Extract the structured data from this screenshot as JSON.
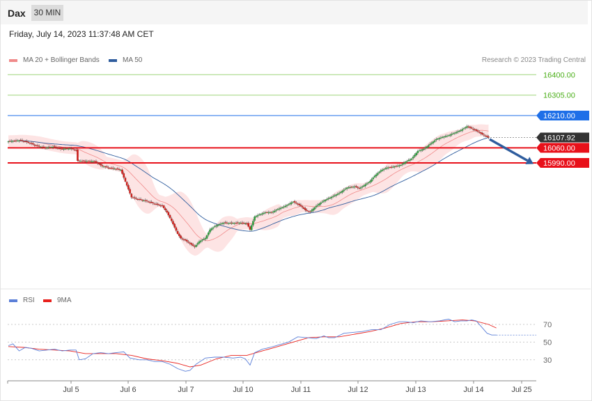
{
  "header": {
    "symbol": "Dax",
    "timeframe": "30 MIN"
  },
  "datetime": "Friday, July 14, 2023 11:37:48 AM CET",
  "legend": {
    "ma20": {
      "label": "MA 20 + Bollinger Bands",
      "color": "#f08a8a"
    },
    "ma50": {
      "label": "MA 50",
      "color": "#2f5d9e"
    },
    "copyright": "Research © 2023 Trading Central"
  },
  "rsi_legend": {
    "rsi": {
      "label": "RSI",
      "color": "#5b7fd8"
    },
    "ma9": {
      "label": "9MA",
      "color": "#e8201c"
    }
  },
  "chart_data": [
    {
      "type": "candlestick",
      "title": "",
      "x_labels": [
        "Jul 5",
        "Jul 6",
        "Jul 7",
        "Jul 10",
        "Jul 11",
        "Jul 12",
        "Jul 13",
        "Jul 14",
        "Jul 25"
      ],
      "y_range": [
        15480,
        16460
      ],
      "levels": [
        {
          "value": 16400.0,
          "label": "16400.00",
          "kind": "target",
          "color": "#4caf1a"
        },
        {
          "value": 16305.0,
          "label": "16305.00",
          "kind": "target",
          "color": "#4caf1a"
        },
        {
          "value": 16210.0,
          "label": "16210.00",
          "kind": "resistance",
          "color": "#1e6fe8"
        },
        {
          "value": 16107.92,
          "label": "16107.92",
          "kind": "last",
          "color": "#333333"
        },
        {
          "value": 16060.0,
          "label": "16060.00",
          "kind": "pivot",
          "color": "#e8101a"
        },
        {
          "value": 15990.0,
          "label": "15990.00",
          "kind": "support",
          "color": "#e8101a"
        }
      ],
      "arrow": {
        "from": 16100,
        "to": 15985,
        "direction": "down",
        "color": "#2f5d9e"
      },
      "close_path": [
        [
          0,
          16090
        ],
        [
          8,
          16095
        ],
        [
          13,
          16085
        ],
        [
          18,
          16070
        ],
        [
          24,
          16060
        ],
        [
          29,
          16065
        ],
        [
          34,
          16055
        ],
        [
          40,
          16057
        ],
        [
          44,
          16050
        ],
        [
          45,
          16000
        ],
        [
          50,
          15998
        ],
        [
          56,
          15997
        ],
        [
          61,
          15975
        ],
        [
          66,
          15966
        ],
        [
          70,
          15962
        ],
        [
          73,
          15958
        ],
        [
          80,
          15830
        ],
        [
          85,
          15820
        ],
        [
          90,
          15812
        ],
        [
          95,
          15800
        ],
        [
          100,
          15790
        ],
        [
          103,
          15760
        ],
        [
          106,
          15720
        ],
        [
          108,
          15690
        ],
        [
          110,
          15660
        ],
        [
          112,
          15640
        ],
        [
          115,
          15630
        ],
        [
          118,
          15615
        ],
        [
          121,
          15600
        ],
        [
          124,
          15625
        ],
        [
          128,
          15640
        ],
        [
          131,
          15680
        ],
        [
          134,
          15695
        ],
        [
          137,
          15705
        ],
        [
          140,
          15712
        ],
        [
          145,
          15710
        ],
        [
          150,
          15712
        ],
        [
          155,
          15708
        ],
        [
          157,
          15680
        ],
        [
          160,
          15740
        ],
        [
          163,
          15750
        ],
        [
          167,
          15760
        ],
        [
          171,
          15760
        ],
        [
          175,
          15775
        ],
        [
          180,
          15790
        ],
        [
          185,
          15810
        ],
        [
          190,
          15790
        ],
        [
          193,
          15770
        ],
        [
          196,
          15762
        ],
        [
          198,
          15776
        ],
        [
          200,
          15790
        ],
        [
          202,
          15800
        ],
        [
          205,
          15815
        ],
        [
          210,
          15832
        ],
        [
          215,
          15850
        ],
        [
          220,
          15875
        ],
        [
          225,
          15880
        ],
        [
          228,
          15872
        ],
        [
          231,
          15885
        ],
        [
          235,
          15905
        ],
        [
          238,
          15930
        ],
        [
          242,
          15955
        ],
        [
          246,
          15968
        ],
        [
          250,
          15972
        ],
        [
          255,
          15980
        ],
        [
          258,
          15995
        ],
        [
          262,
          16010
        ],
        [
          266,
          16045
        ],
        [
          270,
          16055
        ],
        [
          274,
          16078
        ],
        [
          278,
          16100
        ],
        [
          282,
          16110
        ],
        [
          286,
          16118
        ],
        [
          290,
          16130
        ],
        [
          294,
          16142
        ],
        [
          298,
          16160
        ],
        [
          301,
          16150
        ],
        [
          304,
          16140
        ],
        [
          309,
          16118
        ],
        [
          312,
          16108
        ]
      ]
    },
    {
      "type": "line",
      "title": "",
      "y_range": [
        15,
        85
      ],
      "y_ticks": [
        70,
        50,
        30
      ],
      "series": [
        {
          "name": "RSI",
          "values": [
            [
              0,
              46
            ],
            [
              3,
              48
            ],
            [
              7,
              40
            ],
            [
              11,
              44
            ],
            [
              15,
              43
            ],
            [
              20,
              40
            ],
            [
              25,
              41
            ],
            [
              30,
              42
            ],
            [
              35,
              40
            ],
            [
              40,
              41
            ],
            [
              44,
              41
            ],
            [
              46,
              30
            ],
            [
              50,
              31
            ],
            [
              55,
              37
            ],
            [
              60,
              38
            ],
            [
              65,
              37
            ],
            [
              70,
              38
            ],
            [
              75,
              39
            ],
            [
              79,
              32
            ],
            [
              85,
              30
            ],
            [
              90,
              30
            ],
            [
              95,
              28
            ],
            [
              100,
              28
            ],
            [
              105,
              25
            ],
            [
              110,
              20
            ],
            [
              115,
              17
            ],
            [
              118,
              18
            ],
            [
              122,
              25
            ],
            [
              128,
              32
            ],
            [
              134,
              33
            ],
            [
              140,
              33
            ],
            [
              146,
              32
            ],
            [
              151,
              33
            ],
            [
              154,
              31
            ],
            [
              157,
              24
            ],
            [
              160,
              38
            ],
            [
              165,
              42
            ],
            [
              170,
              44
            ],
            [
              176,
              47
            ],
            [
              182,
              50
            ],
            [
              188,
              56
            ],
            [
              194,
              55
            ],
            [
              200,
              54
            ],
            [
              205,
              57
            ],
            [
              208,
              55
            ],
            [
              212,
              55
            ],
            [
              218,
              60
            ],
            [
              224,
              61
            ],
            [
              230,
              62
            ],
            [
              236,
              64
            ],
            [
              242,
              64
            ],
            [
              248,
              70
            ],
            [
              254,
              73
            ],
            [
              258,
              73
            ],
            [
              263,
              72
            ],
            [
              268,
              74
            ],
            [
              274,
              73
            ],
            [
              280,
              74
            ],
            [
              286,
              76
            ],
            [
              290,
              73
            ],
            [
              294,
              74
            ],
            [
              298,
              74
            ],
            [
              301,
              75
            ],
            [
              304,
              74
            ],
            [
              308,
              66
            ],
            [
              311,
              60
            ],
            [
              314,
              58
            ],
            [
              317,
              58
            ]
          ]
        },
        {
          "name": "9MA",
          "values": [
            [
              0,
              45
            ],
            [
              10,
              44
            ],
            [
              20,
              42
            ],
            [
              30,
              41
            ],
            [
              40,
              40
            ],
            [
              50,
              37
            ],
            [
              60,
              37
            ],
            [
              70,
              37
            ],
            [
              80,
              35
            ],
            [
              90,
              31
            ],
            [
              100,
              29
            ],
            [
              110,
              26
            ],
            [
              118,
              22
            ],
            [
              125,
              24
            ],
            [
              135,
              31
            ],
            [
              145,
              35
            ],
            [
              155,
              35
            ],
            [
              165,
              40
            ],
            [
              175,
              45
            ],
            [
              185,
              50
            ],
            [
              195,
              55
            ],
            [
              205,
              56
            ],
            [
              215,
              56
            ],
            [
              225,
              59
            ],
            [
              235,
              62
            ],
            [
              245,
              66
            ],
            [
              255,
              71
            ],
            [
              265,
              73
            ],
            [
              275,
              73
            ],
            [
              285,
              74
            ],
            [
              295,
              75
            ],
            [
              303,
              74
            ],
            [
              312,
              70
            ],
            [
              317,
              66
            ]
          ]
        }
      ]
    }
  ]
}
